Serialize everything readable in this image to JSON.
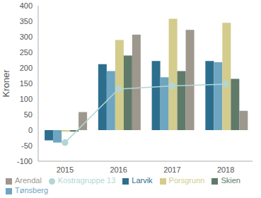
{
  "chart_data": {
    "type": "bar",
    "y_label": "Kroner",
    "categories": [
      "2015",
      "2016",
      "2017",
      "2018"
    ],
    "series": [
      {
        "name": "Larvik",
        "type": "bar",
        "color": "#2d6e8e",
        "values": [
          -33,
          212,
          222,
          222
        ]
      },
      {
        "name": "Tønsberg",
        "type": "bar",
        "color": "#6ea5c0",
        "values": [
          -40,
          190,
          170,
          218
        ]
      },
      {
        "name": "Porsgrunn",
        "type": "bar",
        "color": "#d3cc8c",
        "values": [
          -5,
          290,
          358,
          345
        ]
      },
      {
        "name": "Skien",
        "type": "bar",
        "color": "#607a69",
        "values": [
          -5,
          240,
          190,
          165
        ]
      },
      {
        "name": "Arendal",
        "type": "bar",
        "color": "#9e978e",
        "values": [
          58,
          307,
          322,
          62
        ]
      },
      {
        "name": "Kostragruppe 13",
        "type": "line",
        "color": "#b3d6d3",
        "marker": "circle",
        "values": [
          -40,
          132,
          142,
          148
        ]
      }
    ],
    "ylim": [
      -100,
      400
    ],
    "yticks": [
      -100,
      -50,
      0,
      50,
      100,
      150,
      200,
      250,
      300,
      350,
      400
    ],
    "grid": false,
    "legend": "bottom"
  }
}
